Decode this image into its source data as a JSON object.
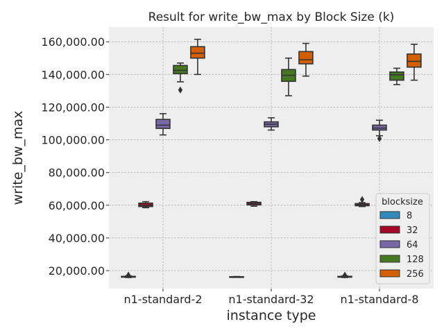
{
  "chart_data": {
    "type": "box",
    "title": "Result for write_bw_max by Block Size (k)",
    "xlabel": "instance type",
    "ylabel": "write_bw_max",
    "categories": [
      "n1-standard-2",
      "n1-standard-32",
      "n1-standard-8"
    ],
    "ylim": [
      9000,
      169000
    ],
    "yticks": [
      20000,
      40000,
      60000,
      80000,
      100000,
      120000,
      140000,
      160000
    ],
    "ytick_labels": [
      "20,000.00",
      "40,000.00",
      "60,000.00",
      "80,000.00",
      "100,000.00",
      "120,000.00",
      "140,000.00",
      "160,000.00"
    ],
    "grid": true,
    "legend": {
      "title": "blocksize",
      "position": "bottom-right"
    },
    "series": [
      {
        "name": "8",
        "color": "#348abd",
        "boxes": [
          {
            "whisker_low": 15800,
            "q1": 16000,
            "median": 16200,
            "q3": 16500,
            "whisker_high": 16800,
            "outliers": [
              17300
            ]
          },
          {
            "whisker_low": 15900,
            "q1": 16000,
            "median": 16100,
            "q3": 16300,
            "whisker_high": 16400,
            "outliers": []
          },
          {
            "whisker_low": 15800,
            "q1": 16000,
            "median": 16200,
            "q3": 16500,
            "whisker_high": 16800,
            "outliers": [
              17200
            ]
          }
        ]
      },
      {
        "name": "32",
        "color": "#a60628",
        "boxes": [
          {
            "whisker_low": 58500,
            "q1": 59200,
            "median": 60000,
            "q3": 61300,
            "whisker_high": 62200,
            "outliers": []
          },
          {
            "whisker_low": 59400,
            "q1": 60200,
            "median": 61000,
            "q3": 61800,
            "whisker_high": 62200,
            "outliers": []
          },
          {
            "whisker_low": 59200,
            "q1": 59700,
            "median": 60300,
            "q3": 61000,
            "whisker_high": 61600,
            "outliers": [
              63500
            ]
          }
        ]
      },
      {
        "name": "64",
        "color": "#7a68a6",
        "boxes": [
          {
            "whisker_low": 103000,
            "q1": 107000,
            "median": 109000,
            "q3": 112500,
            "whisker_high": 116000,
            "outliers": []
          },
          {
            "whisker_low": 106000,
            "q1": 108000,
            "median": 109500,
            "q3": 111000,
            "whisker_high": 113500,
            "outliers": []
          },
          {
            "whisker_low": 102500,
            "q1": 106000,
            "median": 107200,
            "q3": 109000,
            "whisker_high": 112000,
            "outliers": [
              100800
            ]
          }
        ]
      },
      {
        "name": "128",
        "color": "#467821",
        "boxes": [
          {
            "whisker_low": 135500,
            "q1": 140500,
            "median": 142500,
            "q3": 145500,
            "whisker_high": 147000,
            "outliers": [
              130500
            ]
          },
          {
            "whisker_low": 127000,
            "q1": 135800,
            "median": 139500,
            "q3": 143000,
            "whisker_high": 150000,
            "outliers": []
          },
          {
            "whisker_low": 133800,
            "q1": 136500,
            "median": 139800,
            "q3": 141500,
            "whisker_high": 143800,
            "outliers": []
          }
        ]
      },
      {
        "name": "256",
        "color": "#d55e00",
        "boxes": [
          {
            "whisker_low": 140000,
            "q1": 150000,
            "median": 153000,
            "q3": 157000,
            "whisker_high": 161500,
            "outliers": []
          },
          {
            "whisker_low": 139000,
            "q1": 146500,
            "median": 149000,
            "q3": 154000,
            "whisker_high": 159000,
            "outliers": []
          },
          {
            "whisker_low": 136500,
            "q1": 144500,
            "median": 148000,
            "q3": 152500,
            "whisker_high": 158500,
            "outliers": []
          }
        ]
      }
    ]
  }
}
